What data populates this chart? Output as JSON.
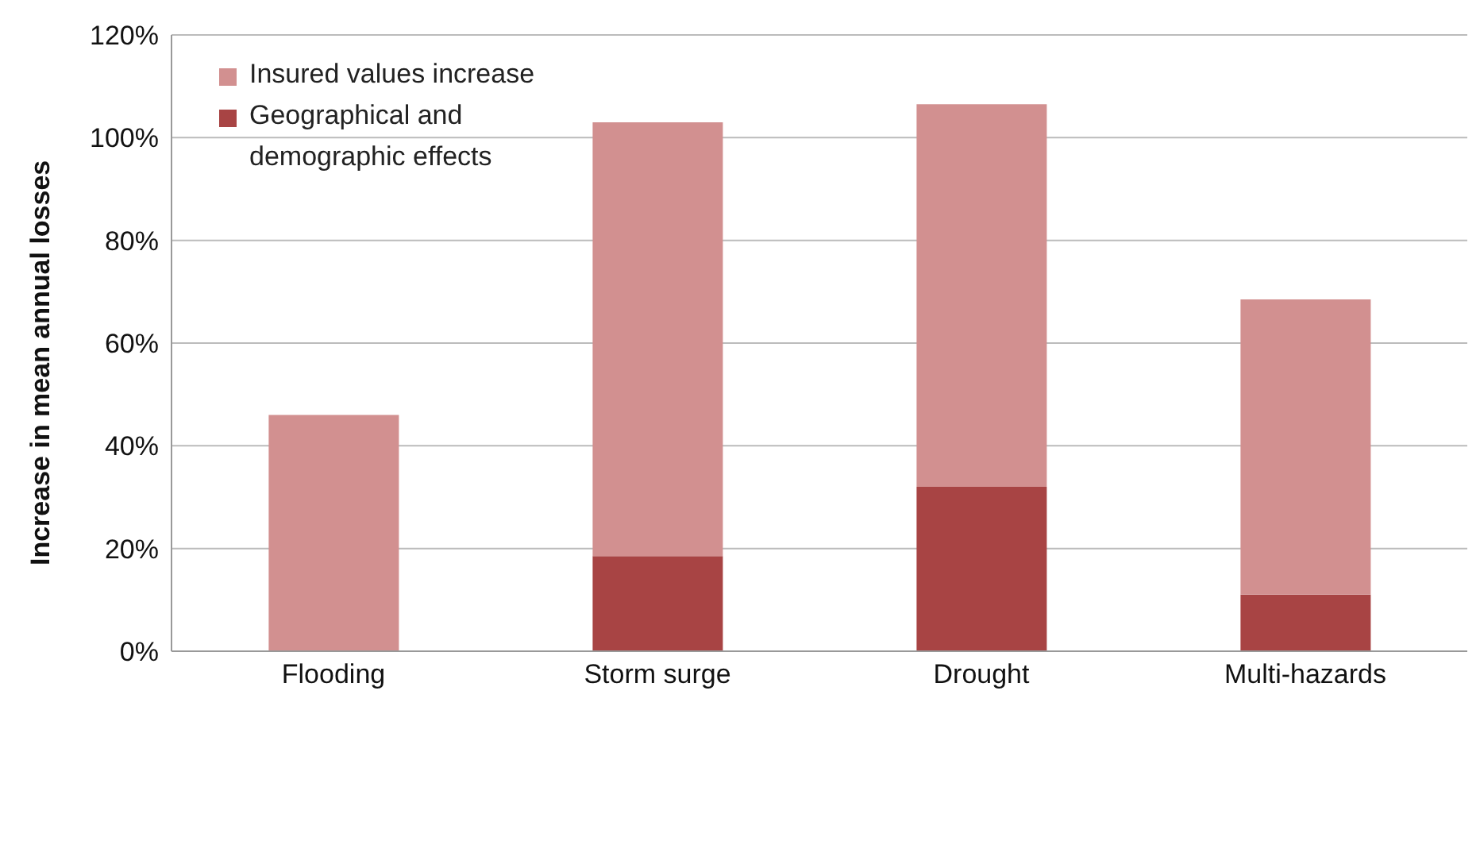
{
  "chart_data": {
    "type": "bar",
    "stacked": true,
    "ylabel": "Increase in mean annual losses",
    "categories": [
      "Flooding",
      "Storm surge",
      "Drought",
      "Multi-hazards"
    ],
    "series": [
      {
        "name": "Geographical and demographic effects",
        "color": "#a84444",
        "values": [
          0,
          18.5,
          32,
          11
        ]
      },
      {
        "name": "Insured values increase",
        "color": "#d29090",
        "values": [
          46,
          84.5,
          74.5,
          57.5
        ]
      }
    ],
    "ylim": [
      0,
      120
    ],
    "yticks": [
      {
        "value": 0,
        "label": "0%"
      },
      {
        "value": 20,
        "label": "20%"
      },
      {
        "value": 40,
        "label": "40%"
      },
      {
        "value": 60,
        "label": "60%"
      },
      {
        "value": 80,
        "label": "80%"
      },
      {
        "value": 100,
        "label": "100%"
      },
      {
        "value": 120,
        "label": "120%"
      }
    ],
    "grid": "y",
    "legend": "top left"
  }
}
